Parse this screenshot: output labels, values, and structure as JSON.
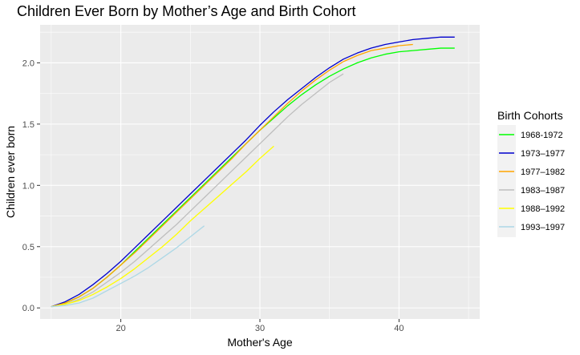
{
  "chart_data": {
    "type": "line",
    "title": "Children Ever Born by Mother’s Age and Birth Cohort",
    "xlabel": "Mother's Age",
    "ylabel": "Children ever born",
    "xlim": [
      14.2,
      45.8
    ],
    "ylim": [
      -0.09,
      2.31
    ],
    "x_ticks": [
      20,
      30,
      40
    ],
    "x_tick_labels": [
      "20",
      "30",
      "40"
    ],
    "y_ticks": [
      0.0,
      0.5,
      1.0,
      1.5,
      2.0
    ],
    "y_tick_labels": [
      "0.0",
      "0.5",
      "1.0",
      "1.5",
      "2.0"
    ],
    "grid": true,
    "legend": {
      "title": "Birth Cohorts",
      "position": "right"
    },
    "series": [
      {
        "name": "1968-1972",
        "color": "#00ff00",
        "x": [
          15,
          16,
          17,
          18,
          19,
          20,
          21,
          22,
          23,
          24,
          25,
          26,
          27,
          28,
          29,
          30,
          31,
          32,
          33,
          34,
          35,
          36,
          37,
          38,
          39,
          40,
          41,
          42,
          43,
          44
        ],
        "y": [
          0.01,
          0.04,
          0.09,
          0.16,
          0.25,
          0.35,
          0.46,
          0.57,
          0.68,
          0.79,
          0.9,
          1.01,
          1.12,
          1.23,
          1.34,
          1.45,
          1.55,
          1.65,
          1.74,
          1.82,
          1.89,
          1.95,
          2.0,
          2.04,
          2.07,
          2.09,
          2.1,
          2.11,
          2.12,
          2.12
        ]
      },
      {
        "name": "1973–1977",
        "color": "#0000cd",
        "x": [
          15,
          16,
          17,
          18,
          19,
          20,
          21,
          22,
          23,
          24,
          25,
          26,
          27,
          28,
          29,
          30,
          31,
          32,
          33,
          34,
          35,
          36,
          37,
          38,
          39,
          40,
          41,
          42,
          43,
          44
        ],
        "y": [
          0.01,
          0.05,
          0.11,
          0.19,
          0.28,
          0.38,
          0.49,
          0.6,
          0.71,
          0.82,
          0.93,
          1.04,
          1.15,
          1.26,
          1.37,
          1.49,
          1.6,
          1.7,
          1.79,
          1.88,
          1.96,
          2.03,
          2.08,
          2.12,
          2.15,
          2.17,
          2.19,
          2.2,
          2.21,
          2.21
        ]
      },
      {
        "name": "1977–1982",
        "color": "#ffa500",
        "x": [
          15,
          16,
          17,
          18,
          19,
          20,
          21,
          22,
          23,
          24,
          25,
          26,
          27,
          28,
          29,
          30,
          31,
          32,
          33,
          34,
          35,
          36,
          37,
          38,
          39,
          40,
          41
        ],
        "y": [
          0.01,
          0.04,
          0.09,
          0.16,
          0.25,
          0.35,
          0.45,
          0.56,
          0.67,
          0.78,
          0.89,
          1.0,
          1.11,
          1.22,
          1.34,
          1.45,
          1.56,
          1.67,
          1.77,
          1.86,
          1.94,
          2.01,
          2.06,
          2.1,
          2.12,
          2.14,
          2.15
        ]
      },
      {
        "name": "1983–1987",
        "color": "#bebebe",
        "x": [
          15,
          16,
          17,
          18,
          19,
          20,
          21,
          22,
          23,
          24,
          25,
          26,
          27,
          28,
          29,
          30,
          31,
          32,
          33,
          34,
          35,
          36
        ],
        "y": [
          0.01,
          0.03,
          0.07,
          0.13,
          0.21,
          0.29,
          0.38,
          0.48,
          0.58,
          0.68,
          0.79,
          0.9,
          1.01,
          1.12,
          1.23,
          1.34,
          1.45,
          1.56,
          1.66,
          1.75,
          1.84,
          1.91
        ]
      },
      {
        "name": "1988–1992",
        "color": "#ffff00",
        "x": [
          15,
          16,
          17,
          18,
          19,
          20,
          21,
          22,
          23,
          24,
          25,
          26,
          27,
          28,
          29,
          30,
          31
        ],
        "y": [
          0.01,
          0.03,
          0.06,
          0.11,
          0.17,
          0.24,
          0.32,
          0.41,
          0.5,
          0.6,
          0.71,
          0.81,
          0.91,
          1.01,
          1.11,
          1.22,
          1.32
        ]
      },
      {
        "name": "1993–1997",
        "color": "#add8e6",
        "x": [
          15,
          16,
          17,
          18,
          19,
          20,
          21,
          22,
          23,
          24,
          25,
          26
        ],
        "y": [
          0.01,
          0.02,
          0.04,
          0.08,
          0.14,
          0.2,
          0.26,
          0.33,
          0.41,
          0.49,
          0.58,
          0.67
        ]
      }
    ]
  }
}
